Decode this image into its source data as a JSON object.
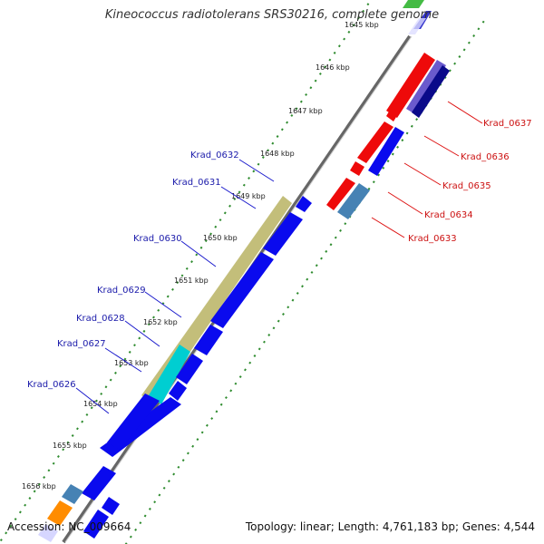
{
  "title": "Kineococcus radiotolerans SRS30216, complete genome",
  "footer": {
    "accession": "Accession: NC_009664",
    "summary": "Topology: linear; Length: 4,761,183 bp; Genes: 4,544"
  },
  "colors": {
    "backbone": "#888888",
    "tick": "#2e8b2e",
    "forward_gene": "#0a0aee",
    "reverse_gene": "#ee0a0a",
    "forward_label": "#1a1aaa",
    "reverse_label": "#cc1111"
  },
  "axis": {
    "unit": "kbp",
    "ticks": [
      "1645 kbp",
      "1646 kbp",
      "1647 kbp",
      "1648 kbp",
      "1649 kbp",
      "1650 kbp",
      "1651 kbp",
      "1652 kbp",
      "1653 kbp",
      "1654 kbp",
      "1655 kbp",
      "1656 kbp"
    ]
  },
  "reverse_labels": [
    "Krad_0637",
    "Krad_0636",
    "Krad_0635",
    "Krad_0634",
    "Krad_0633"
  ],
  "forward_labels": [
    "Krad_0632",
    "Krad_0631",
    "Krad_0630",
    "Krad_0629",
    "Krad_0628",
    "Krad_0627",
    "Krad_0626"
  ]
}
